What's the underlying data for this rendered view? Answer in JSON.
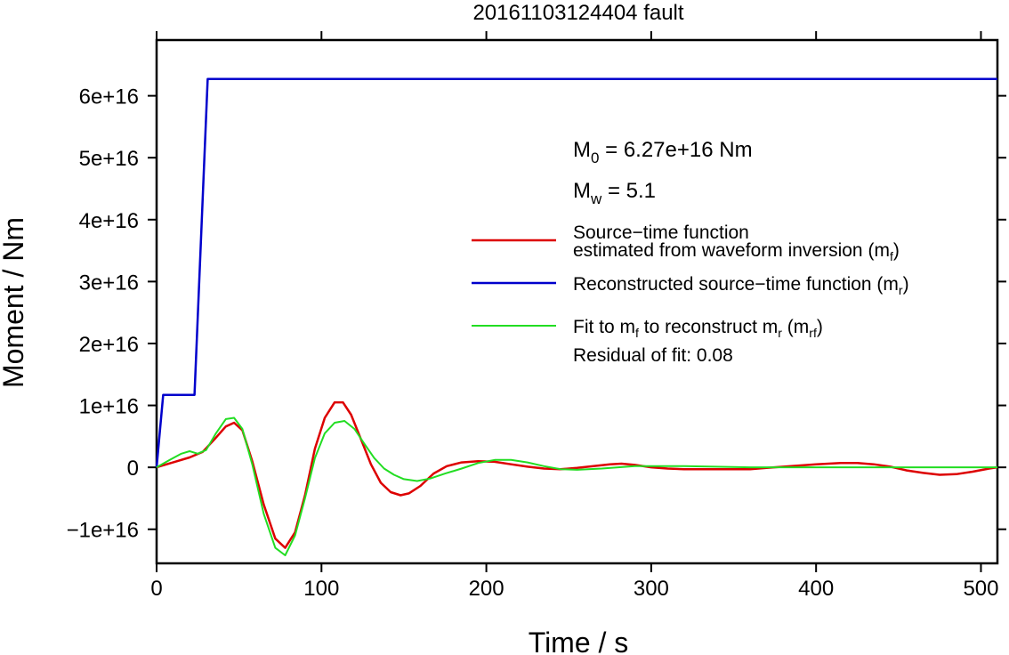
{
  "chart_data": {
    "type": "line",
    "title": "20161103124404 fault",
    "xlabel": "Time / s",
    "ylabel": "Moment / Nm",
    "xlim": [
      0,
      510
    ],
    "ylim": [
      -1.55e+16,
      6.9e+16
    ],
    "x_ticks": [
      0,
      100,
      200,
      300,
      400,
      500
    ],
    "x_tick_labels": [
      "0",
      "100",
      "200",
      "300",
      "400",
      "500"
    ],
    "y_ticks": [
      -1e+16,
      0,
      1e+16,
      2e+16,
      3e+16,
      4e+16,
      5e+16,
      6e+16
    ],
    "y_tick_labels": [
      "−1e+16",
      "0",
      "1e+16",
      "2e+16",
      "3e+16",
      "4e+16",
      "5e+16",
      "6e+16"
    ],
    "grid": false,
    "legend_position": "right",
    "annotations": {
      "m0_prefix": "M",
      "m0_sub": "0",
      "m0_value": " = 6.27e+16 Nm",
      "mw_prefix": "M",
      "mw_sub": "w",
      "mw_value": " = 5.1",
      "residual": "Residual of fit: 0.08"
    },
    "legend": [
      {
        "line1": "Source−time function",
        "line2": "estimated from waveform inversion (m",
        "sub": "f",
        "tail": ")",
        "color": "#dd0000"
      },
      {
        "line1": "Reconstructed source−time function (m",
        "sub": "r",
        "tail": ")",
        "color": "#0000cc"
      },
      {
        "line1": "Fit to m",
        "sub1": "f",
        "mid": " to reconstruct m",
        "sub2": "r",
        "mid2": " (m",
        "sub3": "rf",
        "tail": ")",
        "color": "#00dd00"
      }
    ],
    "series": [
      {
        "color": "#0000cc",
        "width": 2.5,
        "x": [
          0,
          4,
          23,
          31,
          510
        ],
        "y": [
          0,
          1.17e+16,
          1.17e+16,
          6.27e+16,
          6.27e+16
        ]
      },
      {
        "color": "#dd0000",
        "width": 2.5,
        "x": [
          0,
          10,
          20,
          28,
          35,
          42,
          47,
          52,
          58,
          65,
          72,
          78,
          84,
          90,
          96,
          102,
          108,
          113,
          118,
          124,
          130,
          136,
          142,
          148,
          153,
          160,
          168,
          176,
          185,
          195,
          205,
          215,
          225,
          235,
          245,
          255,
          265,
          275,
          282,
          290,
          300,
          310,
          320,
          335,
          350,
          360,
          370,
          385,
          400,
          415,
          425,
          435,
          445,
          455,
          465,
          475,
          485,
          495,
          505,
          510
        ],
        "y": [
          0,
          800000000000000.0,
          1600000000000000.0,
          2500000000000000.0,
          4500000000000000.0,
          6600000000000000.0,
          7200000000000000.0,
          6000000000000000.0,
          1000000000000000.0,
          -6000000000000000.0,
          -1.15e+16,
          -1.3e+16,
          -1.05e+16,
          -4500000000000000.0,
          3000000000000000.0,
          8000000000000000.0,
          1.05e+16,
          1.05e+16,
          8500000000000000.0,
          4500000000000000.0,
          500000000000000.0,
          -2500000000000000.0,
          -4000000000000000.0,
          -4500000000000000.0,
          -4200000000000000.0,
          -3000000000000000.0,
          -1000000000000000.0,
          200000000000000.0,
          800000000000000.0,
          1000000000000000.0,
          900000000000000.0,
          500000000000000.0,
          100000000000000.0,
          -200000000000000.0,
          -300000000000000.0,
          -100000000000000.0,
          200000000000000.0,
          500000000000000.0,
          600000000000000.0,
          400000000000000.0,
          0.0,
          -200000000000000.0,
          -300000000000000.0,
          -300000000000000.0,
          -300000000000000.0,
          -300000000000000.0,
          -100000000000000.0,
          200000000000000.0,
          500000000000000.0,
          700000000000000.0,
          700000000000000.0,
          500000000000000.0,
          100000000000000.0,
          -500000000000000.0,
          -900000000000000.0,
          -1200000000000000.0,
          -1100000000000000.0,
          -700000000000000.0,
          -200000000000000.0,
          0
        ]
      },
      {
        "color": "#22dd22",
        "width": 2,
        "x": [
          0,
          8,
          15,
          20,
          25,
          30,
          36,
          42,
          47,
          52,
          58,
          65,
          72,
          78,
          84,
          90,
          96,
          102,
          108,
          114,
          120,
          126,
          132,
          138,
          144,
          150,
          158,
          166,
          175,
          185,
          195,
          205,
          215,
          225,
          235,
          245,
          255,
          270,
          290,
          320,
          360,
          400,
          440,
          480,
          510
        ],
        "y": [
          0,
          1200000000000000.0,
          2200000000000000.0,
          2600000000000000.0,
          2200000000000000.0,
          2800000000000000.0,
          5500000000000000.0,
          7800000000000000.0,
          8000000000000000.0,
          6200000000000000.0,
          500000000000000.0,
          -7500000000000000.0,
          -1.3e+16,
          -1.42e+16,
          -1.1e+16,
          -5000000000000000.0,
          1500000000000000.0,
          5500000000000000.0,
          7200000000000000.0,
          7500000000000000.0,
          6200000000000000.0,
          3800000000000000.0,
          1500000000000000.0,
          -200000000000000.0,
          -1200000000000000.0,
          -1900000000000000.0,
          -2200000000000000.0,
          -1800000000000000.0,
          -1000000000000000.0,
          -200000000000000.0,
          700000000000000.0,
          1200000000000000.0,
          1200000000000000.0,
          800000000000000.0,
          200000000000000.0,
          -300000000000000.0,
          -400000000000000.0,
          -200000000000000.0,
          200000000000000.0,
          200000000000000.0,
          0.0,
          0.0,
          0.0,
          0.0,
          0.0
        ]
      }
    ]
  }
}
